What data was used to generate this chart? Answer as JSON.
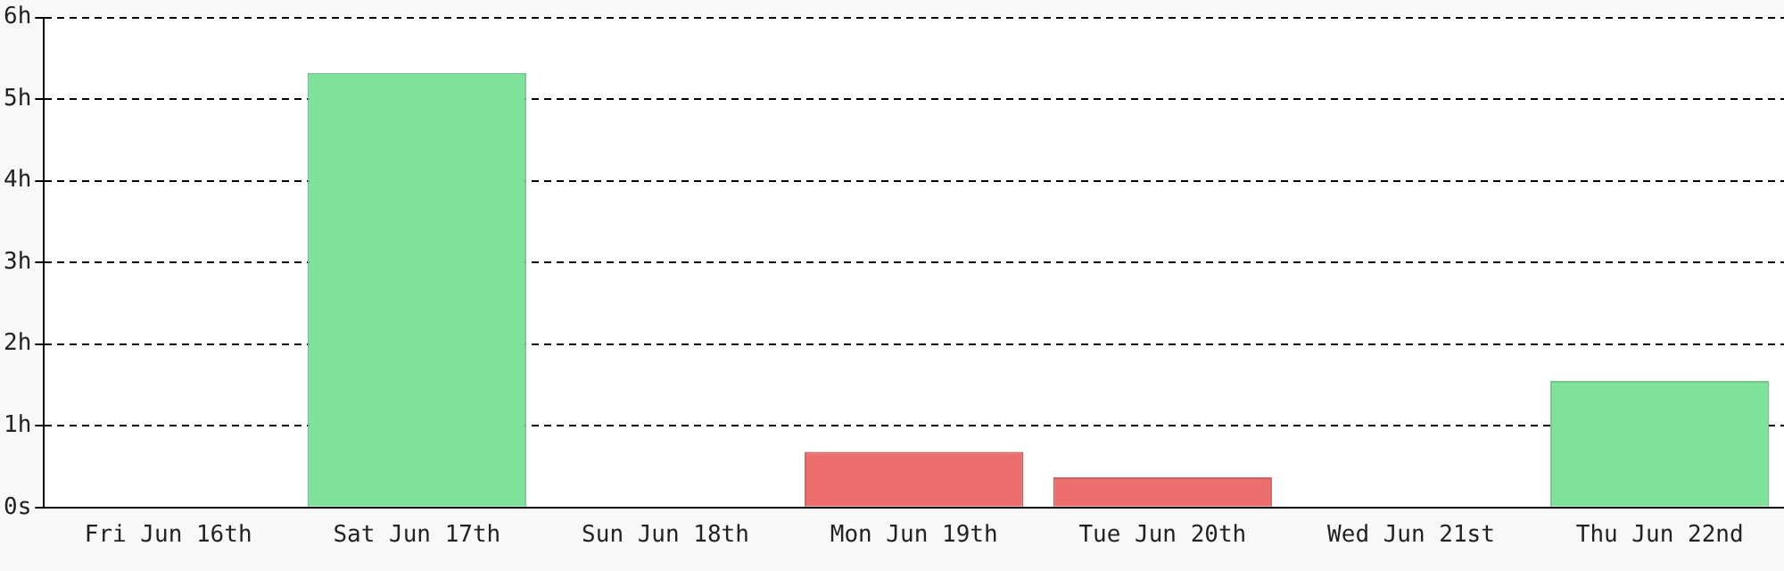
{
  "chart_data": {
    "type": "bar",
    "categories": [
      "Fri Jun 16th",
      "Sat Jun 17th",
      "Sun Jun 18th",
      "Mon Jun 19th",
      "Tue Jun 20th",
      "Wed Jun 21st",
      "Thu Jun 22nd"
    ],
    "values": [
      0,
      5.32,
      0,
      0.68,
      0.37,
      0,
      1.55
    ],
    "colors": [
      "#7ee29a",
      "#7ee29a",
      "#7ee29a",
      "#ec6d6d",
      "#ec6d6d",
      "#cccccc",
      "#7ee29a"
    ],
    "ylim": [
      0,
      6
    ],
    "yticks": [
      {
        "value": 0,
        "label": "0s"
      },
      {
        "value": 1,
        "label": "1h"
      },
      {
        "value": 2,
        "label": "2h"
      },
      {
        "value": 3,
        "label": "3h"
      },
      {
        "value": 4,
        "label": "4h"
      },
      {
        "value": 5,
        "label": "5h"
      },
      {
        "value": 6,
        "label": "6h"
      }
    ],
    "grid": "y",
    "legend": false
  }
}
